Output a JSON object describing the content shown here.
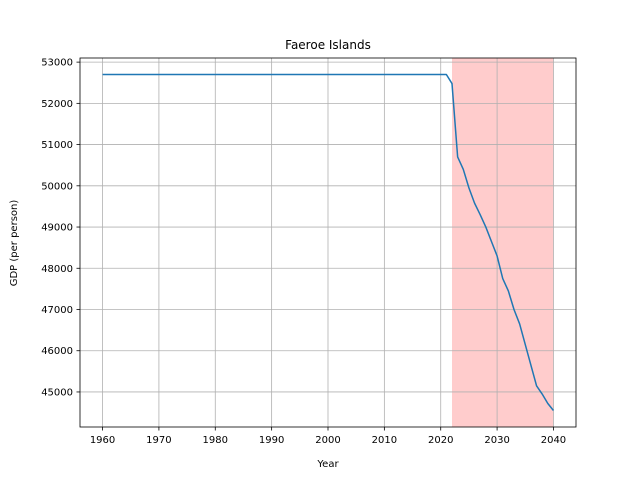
{
  "chart_data": {
    "type": "line",
    "title": "Faeroe Islands",
    "xlabel": "Year",
    "ylabel": "GDP (per person)",
    "xlim": [
      1956,
      2044
    ],
    "ylim": [
      44150,
      53100
    ],
    "xticks": [
      1960,
      1970,
      1980,
      1990,
      2000,
      2010,
      2020,
      2030,
      2040
    ],
    "yticks": [
      45000,
      46000,
      47000,
      48000,
      49000,
      50000,
      51000,
      52000,
      53000
    ],
    "grid": true,
    "shaded_region": {
      "x_start": 2022,
      "x_end": 2040,
      "color": "#ffcccc"
    },
    "series": [
      {
        "name": "GDP (per person)",
        "color": "#1f77b4",
        "x": [
          1960,
          1970,
          1980,
          1990,
          2000,
          2010,
          2020,
          2021,
          2022,
          2023,
          2024,
          2025,
          2026,
          2027,
          2028,
          2029,
          2030,
          2031,
          2032,
          2033,
          2034,
          2035,
          2036,
          2037,
          2038,
          2039,
          2040
        ],
        "values": [
          52700,
          52700,
          52700,
          52700,
          52700,
          52700,
          52700,
          52700,
          52480,
          50700,
          50400,
          49950,
          49580,
          49300,
          49000,
          48650,
          48300,
          47750,
          47450,
          47000,
          46650,
          46150,
          45650,
          45150,
          44950,
          44720,
          44550
        ]
      }
    ]
  }
}
